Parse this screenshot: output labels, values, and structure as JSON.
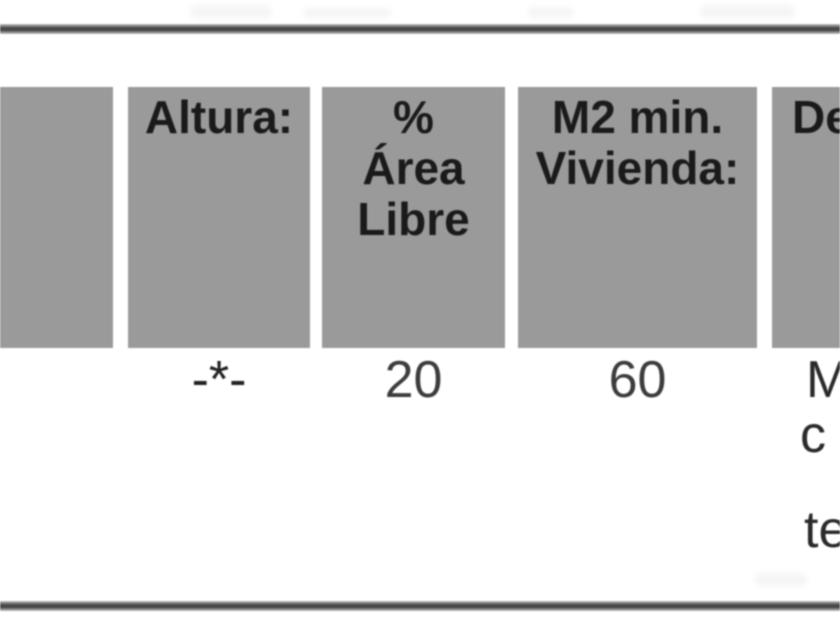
{
  "table": {
    "colors": {
      "header_bg": "#9a9a9a",
      "rule": "#4a4a4a",
      "header_text": "#1a1a1a",
      "value_text": "#3c3c3c"
    },
    "header": {
      "empty": "",
      "altura": "Altura:",
      "area_pct": {
        "line1": "%",
        "line2": "Área",
        "line3": "Libre"
      },
      "m2": {
        "line1": "M2 min.",
        "line2": "Vivienda:"
      },
      "last": "De"
    },
    "row": {
      "altura": "-*-",
      "area_libre": "20",
      "m2_min": "60",
      "fragments": {
        "0": "M",
        "1": "c",
        "2": "te"
      }
    }
  }
}
